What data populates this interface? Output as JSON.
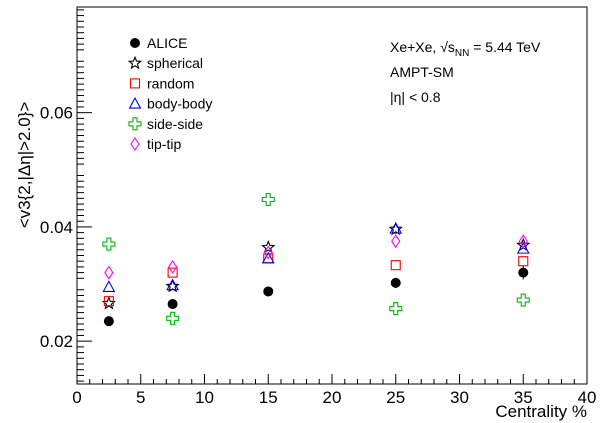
{
  "chart_data": {
    "type": "scatter",
    "xlabel": "Centrality %",
    "ylabel": "<v3{2,|Δη|>2.0}>",
    "xlim": [
      0,
      40
    ],
    "ylim": [
      0.0125,
      0.0785
    ],
    "xticks": [
      "0",
      "5",
      "10",
      "15",
      "20",
      "25",
      "30",
      "35",
      "40"
    ],
    "xtick_values": [
      0,
      5,
      10,
      15,
      20,
      25,
      30,
      35,
      40
    ],
    "yticks": [
      "0.02",
      "0.04",
      "0.06"
    ],
    "ytick_values": [
      0.02,
      0.04,
      0.06
    ],
    "grid": false,
    "legend_placement": "top-left",
    "annotations": {
      "system": "Xe+Xe, √s",
      "subscript": "NN",
      "energy": " = 5.44 TeV",
      "model": "AMPT-SM",
      "eta_cut": "|η| < 0.8"
    },
    "series": [
      {
        "name": "ALICE",
        "marker": "filled-circle",
        "color": "#000000",
        "x": [
          2.5,
          7.5,
          15,
          25,
          35
        ],
        "y": [
          0.0235,
          0.0265,
          0.0287,
          0.0302,
          0.032
        ],
        "yerr": [
          0.0008,
          0.0007,
          0.0006,
          0.0009,
          0.0012
        ]
      },
      {
        "name": "spherical",
        "marker": "open-star",
        "color": "#000000",
        "x": [
          2.5,
          7.5,
          15,
          25,
          35
        ],
        "y": [
          0.0266,
          0.0296,
          0.0364,
          0.0396,
          0.0368
        ]
      },
      {
        "name": "random",
        "marker": "open-square",
        "color": "#ff0000",
        "x": [
          2.5,
          7.5,
          15,
          25,
          35
        ],
        "y": [
          0.027,
          0.032,
          0.0345,
          0.0333,
          0.034
        ]
      },
      {
        "name": "body-body",
        "marker": "open-triangle",
        "color": "#0000ff",
        "x": [
          2.5,
          7.5,
          15,
          25,
          35
        ],
        "y": [
          0.0295,
          0.0298,
          0.0345,
          0.0397,
          0.0362
        ]
      },
      {
        "name": "side-side",
        "marker": "open-cross",
        "color": "#00bb00",
        "x": [
          2.5,
          7.5,
          15,
          25,
          35
        ],
        "y": [
          0.037,
          0.024,
          0.0448,
          0.0257,
          0.0272
        ]
      },
      {
        "name": "tip-tip",
        "marker": "open-diamond",
        "color": "#ff00ff",
        "x": [
          2.5,
          7.5,
          15,
          25,
          35
        ],
        "y": [
          0.032,
          0.033,
          0.0355,
          0.0375,
          0.0375
        ]
      }
    ]
  }
}
